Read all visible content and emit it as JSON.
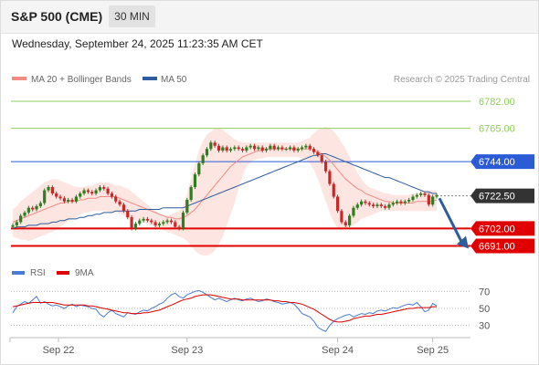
{
  "header": {
    "title": "S&P 500 (CME)",
    "timeframe": "30 MIN"
  },
  "datetime": "Wednesday, September 24, 2025 11:23:35 AM CET",
  "legend": {
    "items": [
      {
        "label": "MA 20 + Bollinger Bands",
        "color": "#f28b82"
      },
      {
        "label": "MA 50",
        "color": "#2e5c9e"
      }
    ],
    "credit": "Research © 2025 Trading Central"
  },
  "rsi_legend": {
    "items": [
      {
        "label": "RSI",
        "color": "#4a7bd0"
      },
      {
        "label": "9MA",
        "color": "#e00000"
      }
    ]
  },
  "colors": {
    "resistance": "#8fce5b",
    "pivot": "#2c5bd6",
    "support": "#e00000",
    "current_price": "#333333",
    "bollinger_fill": "#fde0dc",
    "candle_up": "#2e7d1e",
    "candle_down": "#c62828",
    "arrow": "#2e5c9e"
  },
  "chart_data": [
    {
      "type": "candlestick",
      "x_labels": [
        "Sep 22",
        "Sep 23",
        "Sep 24",
        "Sep 25"
      ],
      "ylim": [
        6685,
        6790
      ],
      "levels": [
        {
          "value": 6782.0,
          "label": "6782.00",
          "kind": "resistance"
        },
        {
          "value": 6765.0,
          "label": "6765.00",
          "kind": "resistance"
        },
        {
          "value": 6744.0,
          "label": "6744.00",
          "kind": "pivot"
        },
        {
          "value": 6722.5,
          "label": "6722.50",
          "kind": "current"
        },
        {
          "value": 6702.0,
          "label": "6702.00",
          "kind": "support"
        },
        {
          "value": 6691.0,
          "label": "6691.00",
          "kind": "support"
        }
      ],
      "close": [
        6704,
        6706,
        6710,
        6712,
        6715,
        6714,
        6716,
        6718,
        6726,
        6728,
        6724,
        6722,
        6721,
        6719,
        6720,
        6719,
        6722,
        6724,
        6726,
        6725,
        6724,
        6726,
        6728,
        6727,
        6724,
        6722,
        6719,
        6717,
        6713,
        6709,
        6702,
        6705,
        6707,
        6708,
        6707,
        6706,
        6704,
        6705,
        6706,
        6707,
        6706,
        6703,
        6702,
        6712,
        6720,
        6728,
        6736,
        6743,
        6748,
        6752,
        6756,
        6754,
        6751,
        6753,
        6751,
        6752,
        6753,
        6752,
        6751,
        6753,
        6754,
        6752,
        6753,
        6751,
        6752,
        6754,
        6752,
        6753,
        6752,
        6752,
        6753,
        6751,
        6752,
        6753,
        6754,
        6752,
        6750,
        6748,
        6744,
        6738,
        6730,
        6722,
        6713,
        6706,
        6704,
        6710,
        6715,
        6717,
        6719,
        6718,
        6717,
        6716,
        6717,
        6716,
        6715,
        6717,
        6718,
        6719,
        6718,
        6719,
        6720,
        6722,
        6723,
        6724,
        6723,
        6717,
        6722,
        6723
      ],
      "ma20": [
        6706,
        6707,
        6708,
        6709,
        6710,
        6711,
        6712,
        6713,
        6714,
        6715,
        6716,
        6717,
        6718,
        6718,
        6719,
        6719,
        6719,
        6720,
        6720,
        6721,
        6721,
        6721,
        6722,
        6722,
        6722,
        6722,
        6722,
        6721,
        6720,
        6719,
        6718,
        6717,
        6716,
        6715,
        6714,
        6713,
        6712,
        6711,
        6710,
        6709,
        6709,
        6708,
        6708,
        6709,
        6710,
        6712,
        6714,
        6717,
        6720,
        6723,
        6726,
        6729,
        6732,
        6735,
        6738,
        6741,
        6743,
        6745,
        6747,
        6748,
        6749,
        6750,
        6751,
        6751,
        6752,
        6752,
        6752,
        6752,
        6752,
        6752,
        6752,
        6752,
        6752,
        6752,
        6752,
        6752,
        6751,
        6750,
        6749,
        6747,
        6745,
        6742,
        6739,
        6736,
        6733,
        6731,
        6729,
        6727,
        6726,
        6724,
        6723,
        6722,
        6721,
        6720,
        6719,
        6719,
        6718,
        6718,
        6718,
        6718,
        6718,
        6718,
        6719,
        6719,
        6719,
        6719,
        6719,
        6720
      ],
      "ma50": [
        6702,
        6703,
        6703,
        6703,
        6704,
        6704,
        6704,
        6705,
        6705,
        6705,
        6706,
        6706,
        6707,
        6707,
        6708,
        6708,
        6708,
        6709,
        6709,
        6710,
        6710,
        6711,
        6711,
        6712,
        6712,
        6712,
        6713,
        6713,
        6713,
        6713,
        6713,
        6713,
        6714,
        6714,
        6714,
        6714,
        6714,
        6714,
        6715,
        6715,
        6715,
        6715,
        6715,
        6715,
        6716,
        6717,
        6718,
        6719,
        6720,
        6721,
        6722,
        6723,
        6724,
        6725,
        6726,
        6727,
        6728,
        6729,
        6730,
        6731,
        6732,
        6733,
        6734,
        6735,
        6736,
        6737,
        6738,
        6739,
        6740,
        6741,
        6742,
        6743,
        6744,
        6745,
        6746,
        6747,
        6748,
        6748,
        6749,
        6749,
        6748,
        6747,
        6746,
        6745,
        6744,
        6743,
        6742,
        6741,
        6740,
        6739,
        6738,
        6737,
        6736,
        6735,
        6734,
        6734,
        6733,
        6732,
        6731,
        6730,
        6729,
        6728,
        6727,
        6726,
        6725,
        6725,
        6724,
        6724
      ],
      "bb_upper": [
        6714,
        6716,
        6719,
        6721,
        6723,
        6725,
        6727,
        6729,
        6731,
        6732,
        6733,
        6733,
        6732,
        6731,
        6730,
        6729,
        6728,
        6728,
        6728,
        6729,
        6729,
        6730,
        6731,
        6731,
        6731,
        6730,
        6729,
        6729,
        6728,
        6727,
        6725,
        6723,
        6721,
        6719,
        6717,
        6715,
        6713,
        6711,
        6710,
        6710,
        6711,
        6712,
        6713,
        6716,
        6724,
        6733,
        6743,
        6751,
        6757,
        6761,
        6763,
        6765,
        6765,
        6764,
        6762,
        6760,
        6758,
        6757,
        6756,
        6756,
        6756,
        6756,
        6756,
        6756,
        6756,
        6756,
        6756,
        6756,
        6756,
        6756,
        6756,
        6756,
        6756,
        6757,
        6758,
        6759,
        6762,
        6764,
        6765,
        6766,
        6765,
        6763,
        6760,
        6756,
        6752,
        6747,
        6742,
        6737,
        6733,
        6730,
        6728,
        6727,
        6726,
        6725,
        6724,
        6724,
        6723,
        6723,
        6723,
        6723,
        6723,
        6724,
        6724,
        6725,
        6726,
        6726,
        6726,
        6726
      ],
      "bb_lower": [
        6697,
        6696,
        6695,
        6695,
        6694,
        6695,
        6696,
        6697,
        6698,
        6699,
        6700,
        6701,
        6703,
        6705,
        6707,
        6708,
        6709,
        6711,
        6712,
        6712,
        6713,
        6713,
        6713,
        6713,
        6713,
        6712,
        6712,
        6711,
        6710,
        6709,
        6708,
        6707,
        6707,
        6706,
        6705,
        6704,
        6703,
        6702,
        6701,
        6700,
        6699,
        6698,
        6697,
        6696,
        6694,
        6691,
        6688,
        6686,
        6685,
        6685,
        6686,
        6688,
        6692,
        6697,
        6704,
        6711,
        6718,
        6727,
        6735,
        6741,
        6744,
        6745,
        6746,
        6746,
        6747,
        6747,
        6747,
        6747,
        6747,
        6747,
        6747,
        6747,
        6747,
        6746,
        6745,
        6743,
        6739,
        6733,
        6726,
        6719,
        6712,
        6706,
        6702,
        6701,
        6702,
        6703,
        6704,
        6706,
        6708,
        6709,
        6710,
        6711,
        6712,
        6713,
        6713,
        6713,
        6713,
        6713,
        6713,
        6713,
        6713,
        6713,
        6713,
        6713,
        6713,
        6713,
        6713,
        6713
      ],
      "forecast_arrow": {
        "from": 6721,
        "to": 6691
      }
    },
    {
      "type": "line",
      "panel": "RSI",
      "ylim": [
        20,
        80
      ],
      "y_ticks": [
        70,
        50,
        30
      ],
      "series": [
        {
          "name": "RSI",
          "values": [
            45,
            52,
            55,
            58,
            56,
            60,
            64,
            56,
            58,
            55,
            53,
            54,
            52,
            50,
            53,
            55,
            52,
            54,
            53,
            52,
            50,
            49,
            43,
            40,
            45,
            48,
            44,
            42,
            40,
            45,
            44,
            43,
            46,
            48,
            47,
            50,
            52,
            55,
            57,
            62,
            66,
            68,
            64,
            62,
            66,
            68,
            70,
            71,
            69,
            66,
            63,
            60,
            62,
            60,
            58,
            60,
            62,
            60,
            59,
            61,
            62,
            60,
            58,
            59,
            61,
            60,
            58,
            57,
            55,
            56,
            57,
            55,
            50,
            44,
            42,
            40,
            35,
            28,
            25,
            23,
            30,
            35,
            38,
            40,
            42,
            43,
            40,
            42,
            44,
            43,
            45,
            44,
            47,
            48,
            47,
            49,
            51,
            50,
            52,
            54,
            55,
            54,
            57,
            52,
            46,
            48,
            56,
            53
          ]
        },
        {
          "name": "9MA",
          "values": [
            52,
            53,
            54,
            55,
            56,
            57,
            57,
            57,
            57,
            57,
            57,
            56,
            55,
            54,
            54,
            54,
            54,
            54,
            54,
            53,
            53,
            52,
            51,
            50,
            49,
            48,
            47,
            46,
            45,
            45,
            44,
            44,
            44,
            45,
            45,
            46,
            47,
            48,
            50,
            52,
            54,
            56,
            58,
            60,
            61,
            62,
            64,
            65,
            66,
            66,
            66,
            65,
            64,
            63,
            62,
            61,
            61,
            61,
            60,
            60,
            60,
            60,
            60,
            60,
            60,
            60,
            59,
            59,
            58,
            58,
            57,
            57,
            56,
            55,
            53,
            51,
            49,
            46,
            43,
            40,
            37,
            35,
            34,
            34,
            35,
            36,
            38,
            39,
            40,
            41,
            41,
            42,
            43,
            43,
            44,
            45,
            46,
            47,
            48,
            49,
            50,
            50,
            51,
            51,
            51,
            51,
            52,
            52
          ]
        }
      ]
    }
  ]
}
